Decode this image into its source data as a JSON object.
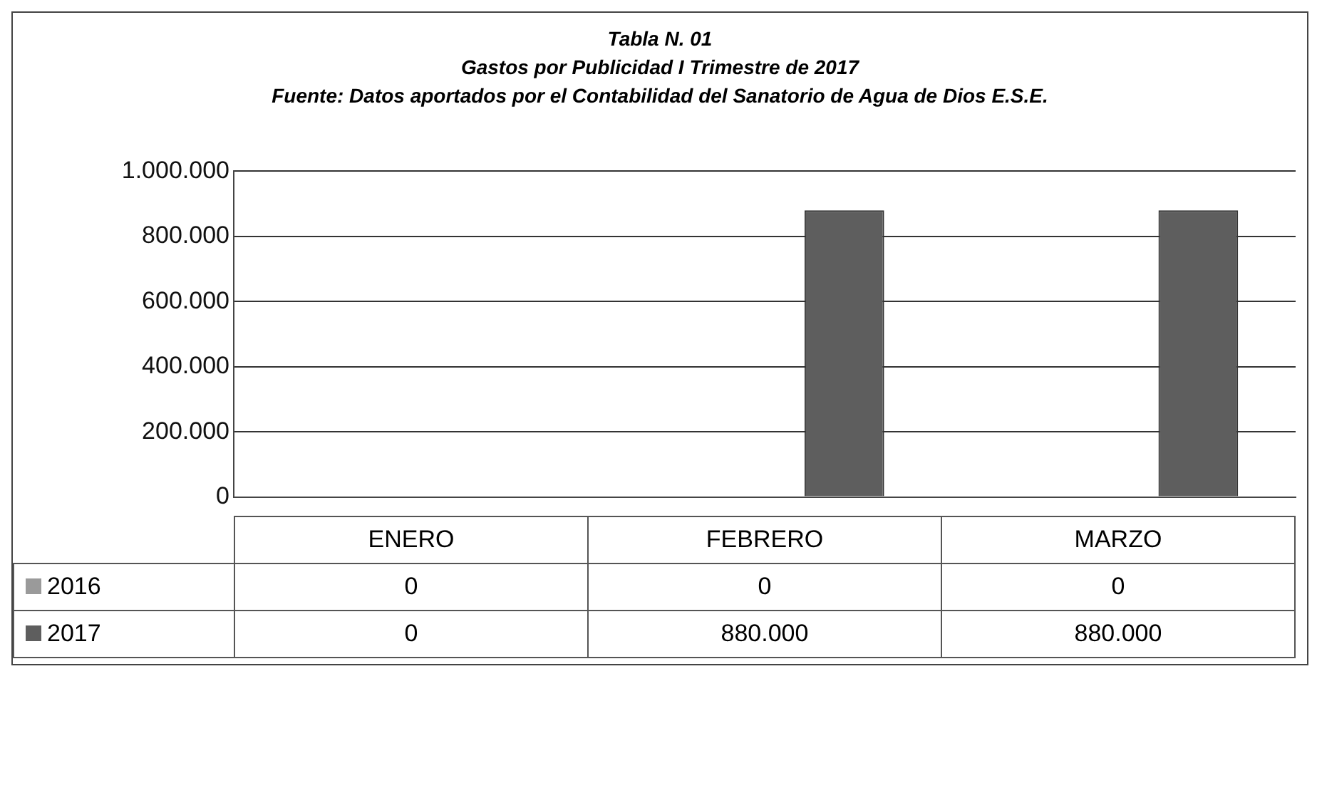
{
  "chart_data": {
    "type": "bar",
    "title": "Tabla N. 01",
    "subtitle": "Gastos por Publicidad I Trimestre de 2017",
    "annotations": [
      "Fuente: Datos aportados por el Contabilidad del Sanatorio de Agua de Dios E.S.E."
    ],
    "categories": [
      "ENERO",
      "FEBRERO",
      "MARZO"
    ],
    "series": [
      {
        "name": "2016",
        "color": "#9a9a9a",
        "values": [
          0,
          0,
          0
        ],
        "value_labels": [
          "0",
          "0",
          "0"
        ]
      },
      {
        "name": "2017",
        "color": "#5e5e5e",
        "values": [
          0,
          880000,
          880000
        ],
        "value_labels": [
          "0",
          "880.000",
          "880.000"
        ]
      }
    ],
    "ylim": [
      0,
      1000000
    ],
    "yticks": [
      {
        "value": 0,
        "label": "0"
      },
      {
        "value": 200000,
        "label": "200.000"
      },
      {
        "value": 400000,
        "label": "400.000"
      },
      {
        "value": 600000,
        "label": "600.000"
      },
      {
        "value": 800000,
        "label": "800.000"
      },
      {
        "value": 1000000,
        "label": "1.000.000"
      }
    ],
    "grid": "y",
    "legend": "bottom"
  }
}
